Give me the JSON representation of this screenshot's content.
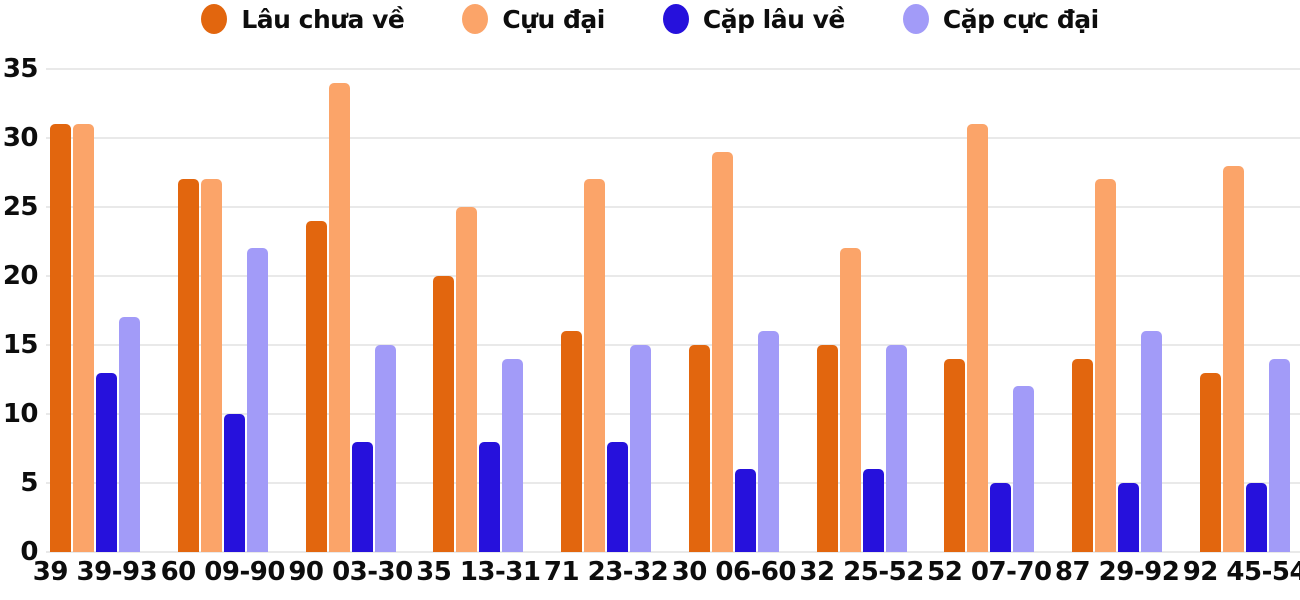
{
  "chart_data": {
    "type": "bar",
    "title": "",
    "xlabel": "",
    "ylabel": "",
    "categories": [
      "39 39-93",
      "60 09-90",
      "90 03-30",
      "35 13-31",
      "71 23-32",
      "30 06-60",
      "32 25-52",
      "52 07-70",
      "87 29-92",
      "92 45-54"
    ],
    "series": [
      {
        "name": "Lâu chưa về",
        "color": "#e2660e",
        "values": [
          31,
          27,
          24,
          20,
          16,
          15,
          15,
          14,
          14,
          13
        ]
      },
      {
        "name": "Cựu đại",
        "color": "#fba469",
        "values": [
          31,
          27,
          34,
          25,
          27,
          29,
          22,
          31,
          27,
          28
        ]
      },
      {
        "name": "Cặp lâu về",
        "color": "#2611dc",
        "values": [
          13,
          10,
          8,
          8,
          8,
          6,
          6,
          5,
          5,
          5
        ]
      },
      {
        "name": "Cặp cực đại",
        "color": "#a29bf8",
        "values": [
          17,
          22,
          15,
          14,
          15,
          16,
          15,
          12,
          16,
          14
        ]
      }
    ],
    "ylim": [
      0,
      35
    ],
    "yticks": [
      35,
      30,
      25,
      20,
      15,
      10,
      5,
      0
    ],
    "grid": true,
    "legend_position": "top",
    "gridline_color": "#e9e9e9",
    "text_color": "#0d0d0d"
  }
}
